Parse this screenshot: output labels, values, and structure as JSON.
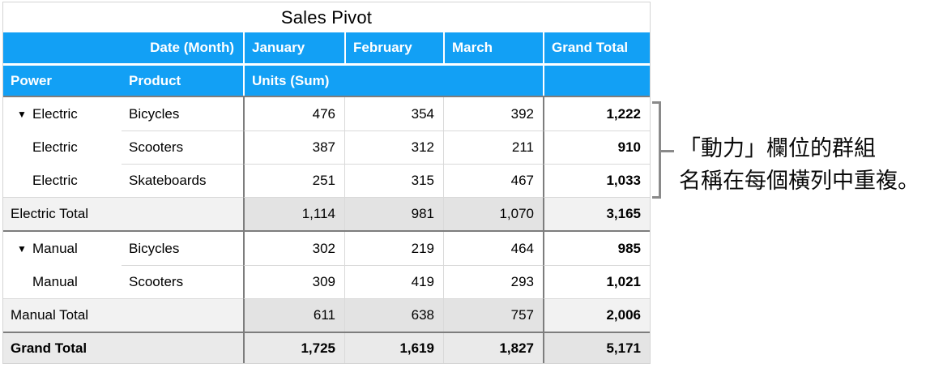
{
  "title": "Sales Pivot",
  "header": {
    "date_month": "Date (Month)",
    "months": [
      "January",
      "February",
      "March"
    ],
    "grand_total": "Grand Total",
    "power": "Power",
    "product": "Product",
    "units_sum": "Units (Sum)"
  },
  "disclosure_icon": "▼",
  "rows": [
    {
      "power": "Electric",
      "product": "Bicycles",
      "values": [
        "476",
        "354",
        "392"
      ],
      "total": "1,222"
    },
    {
      "power": "Electric",
      "product": "Scooters",
      "values": [
        "387",
        "312",
        "211"
      ],
      "total": "910"
    },
    {
      "power": "Electric",
      "product": "Skateboards",
      "values": [
        "251",
        "315",
        "467"
      ],
      "total": "1,033"
    },
    {
      "power": "Electric Total",
      "product": "",
      "values": [
        "1,114",
        "981",
        "1,070"
      ],
      "total": "3,165"
    },
    {
      "power": "Manual",
      "product": "Bicycles",
      "values": [
        "302",
        "219",
        "464"
      ],
      "total": "985"
    },
    {
      "power": "Manual",
      "product": "Scooters",
      "values": [
        "309",
        "419",
        "293"
      ],
      "total": "1,021"
    },
    {
      "power": "Manual Total",
      "product": "",
      "values": [
        "611",
        "638",
        "757"
      ],
      "total": "2,006"
    },
    {
      "power": "Grand Total",
      "product": "",
      "values": [
        "1,725",
        "1,619",
        "1,827"
      ],
      "total": "5,171"
    }
  ],
  "annotation": {
    "line1": "「動力」欄位的群組",
    "line2": "名稱在每個橫列中重複。"
  },
  "colors": {
    "header_blue": "#12A0F5",
    "dark_border": "#7d7d7d",
    "light_border": "#d9d9d9",
    "subtotal_fill": "#E3E3E3",
    "subtotal_light_fill": "#F2F2F2",
    "grand_fill": "#EAEAEA",
    "bracket_gray": "#8a8a8a"
  }
}
